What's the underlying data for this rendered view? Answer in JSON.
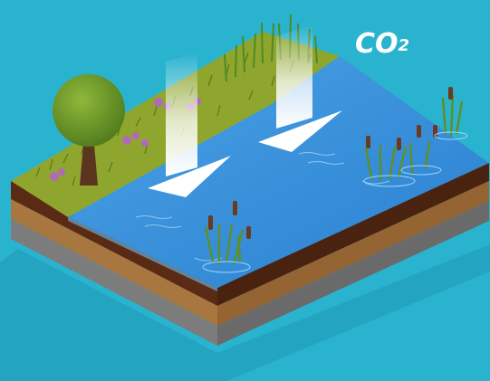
{
  "labels": {
    "co2_main": "CO",
    "co2_sub": "2"
  },
  "colors": {
    "background": "#2ab3cf",
    "water": "#2f8fd8",
    "water_light": "#5cb3ec",
    "grass": "#8fa62e",
    "soil_top": "#5a2a14",
    "soil_mid": "#a8763f",
    "soil_base": "#7a7a7a",
    "tree_canopy": "#6e9a2a",
    "flower": "#b26ab8",
    "arrow": "#ffffff"
  },
  "icons": [
    "co2-arrow-icon",
    "tree-icon",
    "cattail-reed-icon",
    "flower-icon"
  ]
}
